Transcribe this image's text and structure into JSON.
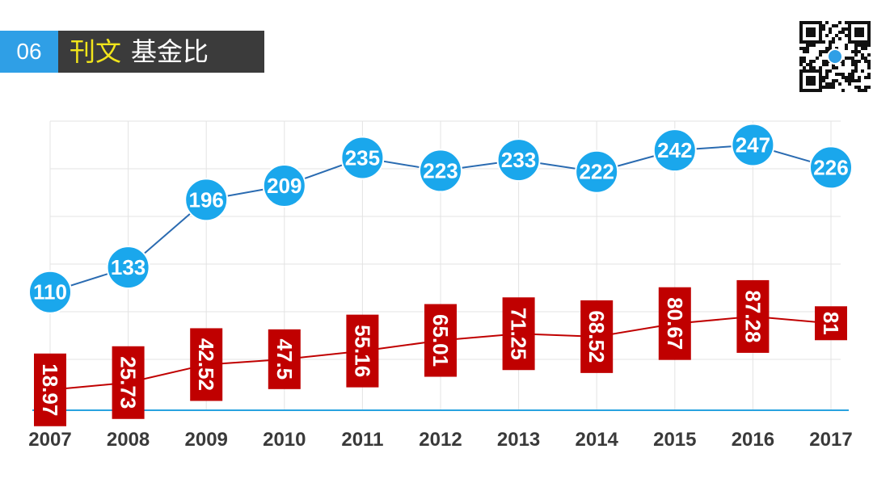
{
  "header": {
    "number": "06",
    "title_highlight": "刊文",
    "title_rest": "基金比"
  },
  "colors": {
    "accent_blue": "#2f9fe6",
    "header_dark": "#3b3b3b",
    "title_yellow": "#f2e51b",
    "label_red": "#c00000",
    "circle_blue": "#1aa7ec",
    "line_blue": "#2a6bb1"
  },
  "chart_data": {
    "type": "line",
    "categories": [
      "2007",
      "2008",
      "2009",
      "2010",
      "2011",
      "2012",
      "2013",
      "2014",
      "2015",
      "2016",
      "2017"
    ],
    "series": [
      {
        "values": [
          110,
          133,
          196,
          209,
          235,
          223,
          233,
          222,
          242,
          247,
          226
        ]
      },
      {
        "values": [
          18.97,
          25.73,
          42.52,
          47.5,
          55.16,
          65.01,
          71.25,
          68.52,
          80.67,
          87.28,
          81
        ]
      }
    ],
    "series_labels": [
      [
        "110",
        "133",
        "196",
        "209",
        "235",
        "223",
        "233",
        "222",
        "242",
        "247",
        "226"
      ],
      [
        "18.97",
        "25.73",
        "42.52",
        "47.5",
        "55.16",
        "65.01",
        "71.25",
        "68.52",
        "80.67",
        "87.28",
        "81"
      ]
    ],
    "grid": true,
    "legend": "none"
  }
}
